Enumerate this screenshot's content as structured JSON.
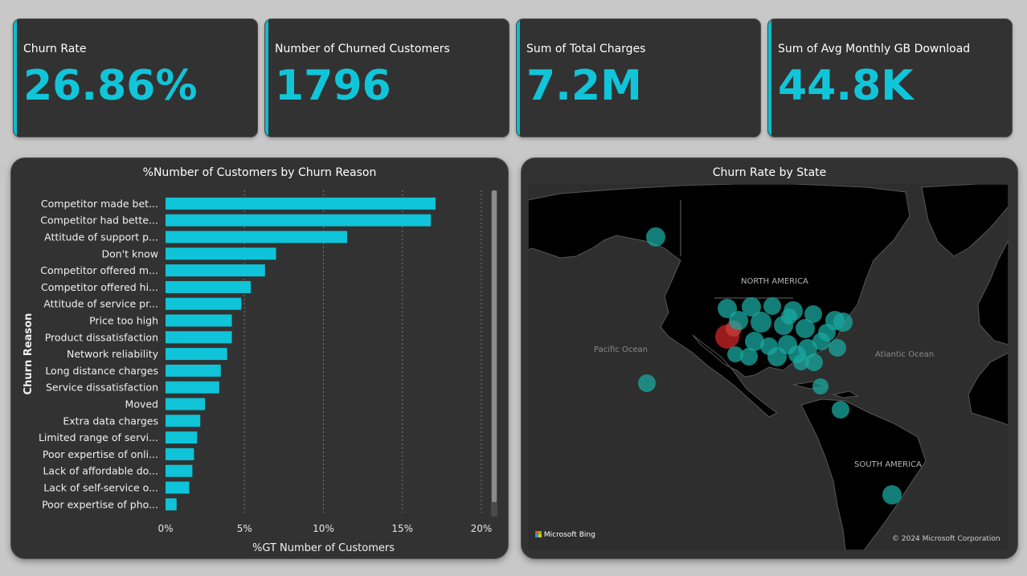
{
  "kpis": [
    {
      "label": "Churn Rate",
      "value": "26.86%"
    },
    {
      "label": "Number of Churned Customers",
      "value": "1796"
    },
    {
      "label": "Sum of Total Charges",
      "value": "7.2M"
    },
    {
      "label": "Sum of Avg Monthly GB Download",
      "value": "44.8K"
    }
  ],
  "colors": {
    "accent": "#11c5d9",
    "bar": "#0fc4d8",
    "panel": "#323232",
    "background": "#c8c8c8",
    "map_bubble": "#1aa89f",
    "map_bubble_high": "#b52020"
  },
  "bar_chart": {
    "title": "%Number of Customers by Churn Reason"
  },
  "map": {
    "title": "Churn Rate by State",
    "labels": {
      "north_america": "NORTH AMERICA",
      "south_america": "SOUTH AMERICA",
      "pacific": "Pacific Ocean",
      "atlantic": "Atlantic Ocean"
    },
    "logo": "Microsoft Bing",
    "copyright": "© 2024 Microsoft Corporation"
  },
  "chart_data": {
    "type": "bar",
    "orientation": "horizontal",
    "title": "%Number of Customers by Churn Reason",
    "xlabel": "%GT Number of Customers",
    "ylabel": "Churn Reason",
    "xlim": [
      0,
      20
    ],
    "x_ticks": [
      "0%",
      "5%",
      "10%",
      "15%",
      "20%"
    ],
    "grid": true,
    "categories": [
      "Competitor made bet...",
      "Competitor had bette...",
      "Attitude of support p...",
      "Don't know",
      "Competitor offered m...",
      "Competitor offered hi...",
      "Attitude of service pr...",
      "Price too high",
      "Product dissatisfaction",
      "Network reliability",
      "Long distance charges",
      "Service dissatisfaction",
      "Moved",
      "Extra data charges",
      "Limited range of servi...",
      "Poor expertise of onli...",
      "Lack of affordable do...",
      "Lack of self-service o...",
      "Poor expertise of pho..."
    ],
    "values": [
      17.1,
      16.8,
      11.5,
      7.0,
      6.3,
      5.4,
      4.8,
      4.2,
      4.2,
      3.9,
      3.5,
      3.4,
      2.5,
      2.2,
      2.0,
      1.8,
      1.7,
      1.5,
      0.7
    ]
  }
}
